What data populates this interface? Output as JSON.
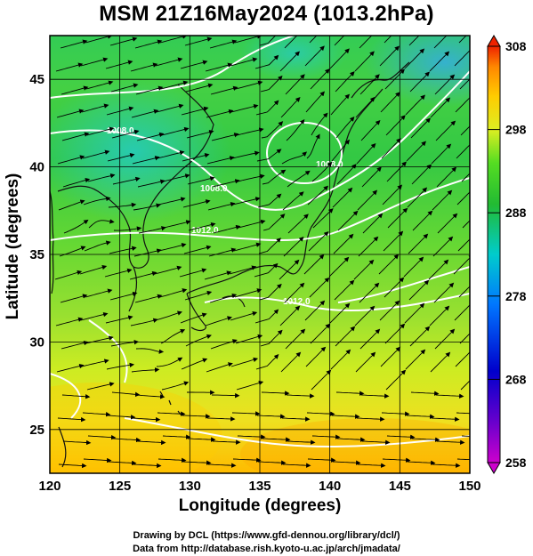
{
  "title": "MSM 21Z16May2024 (1013.2hPa)",
  "xlabel": "Longitude (degrees)",
  "ylabel": "Latitude  (degrees)",
  "credits": {
    "line1": "Drawing by DCL (https://www.gfd-dennou.org/library/dcl/)",
    "line2": "Data from http://database.rish.kyoto-u.ac.jp/arch/jmadata/"
  },
  "map": {
    "lon_range": [
      120,
      150
    ],
    "lat_range": [
      22.5,
      47.5
    ],
    "lon_ticks": [
      120,
      125,
      130,
      135,
      140,
      145,
      150
    ],
    "lat_ticks": [
      25,
      30,
      35,
      40,
      45
    ],
    "grid": true,
    "isobar_labels": [
      "1008.0",
      "1012.0",
      "1012.0",
      "1008.0",
      "1008.0"
    ]
  },
  "colorbar": {
    "ticks": [
      258,
      268,
      278,
      288,
      298,
      308
    ],
    "colors": [
      "#cc00cc",
      "#0000cc",
      "#0077ff",
      "#00cccc",
      "#22bb33",
      "#55dd22",
      "#ddee22",
      "#ffcc00",
      "#ff8800",
      "#ee2200"
    ]
  }
}
